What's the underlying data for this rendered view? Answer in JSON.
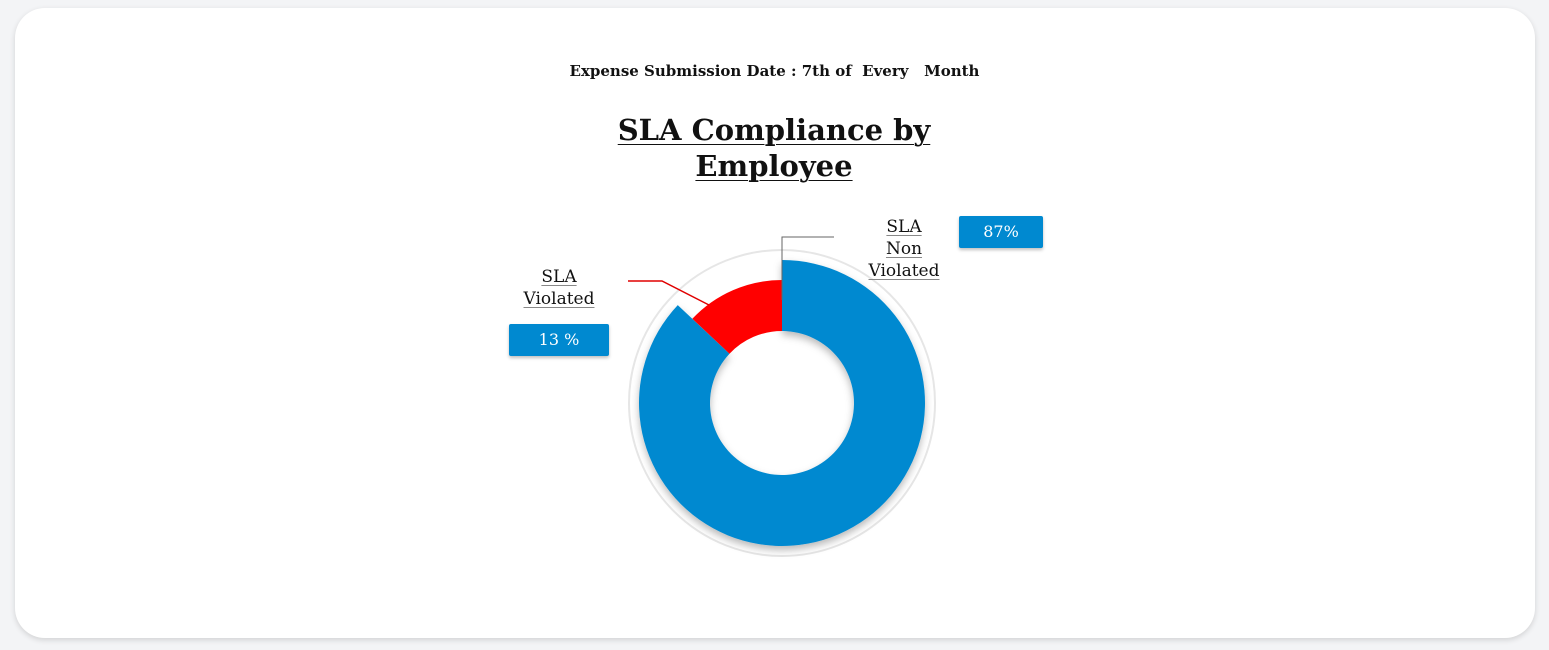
{
  "header": {
    "subtitle": "Expense Submission Date : 7th of  Every   Month"
  },
  "chart_data": {
    "type": "pie",
    "title_line1": "SLA Compliance by",
    "title_line2": "Employee",
    "hole": true,
    "slices": [
      {
        "label_lines": [
          "SLA",
          "Non",
          "Violated"
        ],
        "value": 87,
        "value_label": "87%",
        "color": "#0089d0"
      },
      {
        "label_lines": [
          "SLA",
          "Violated"
        ],
        "value": 13,
        "value_label": "13 %",
        "color": "#ff0000"
      }
    ],
    "legend": "none"
  }
}
